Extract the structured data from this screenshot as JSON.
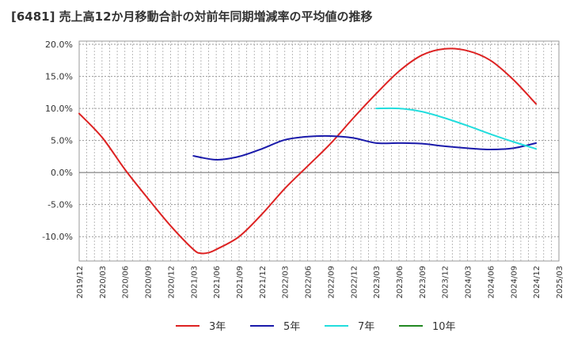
{
  "title": "[6481]  売上高12か月移動合計の対前年同期増減率の平均値の推移",
  "chart_data": {
    "type": "line",
    "title": "[6481]  売上高12か月移動合計の対前年同期増減率の平均値の推移",
    "xlabel": "",
    "ylabel": "",
    "ylim": [
      -13.8,
      20.5
    ],
    "y_ticks": [
      20,
      15,
      10,
      5,
      0,
      -5,
      -10
    ],
    "y_tick_labels": [
      "20.0%",
      "15.0%",
      "10.0%",
      "5.0%",
      "0.0%",
      "-5.0%",
      "-10.0%"
    ],
    "x_tick_labels": [
      "2019/12",
      "2020/03",
      "2020/06",
      "2020/09",
      "2020/12",
      "2021/03",
      "2021/06",
      "2021/09",
      "2021/12",
      "2022/03",
      "2022/06",
      "2022/09",
      "2022/12",
      "2023/03",
      "2023/06",
      "2023/09",
      "2023/12",
      "2024/03",
      "2024/06",
      "2024/09",
      "2024/12",
      "2025/03"
    ],
    "grid": true,
    "legend_position": "bottom",
    "series": [
      {
        "name": "3年",
        "color": "#dd2222",
        "points": [
          [
            "2019/12",
            9.2
          ],
          [
            "2020/03",
            5.5
          ],
          [
            "2020/06",
            0.5
          ],
          [
            "2020/09",
            -4.0
          ],
          [
            "2020/12",
            -8.3
          ],
          [
            "2021/03",
            -12.0
          ],
          [
            "2021/04",
            -12.6
          ],
          [
            "2021/05",
            -12.5
          ],
          [
            "2021/06",
            -12.0
          ],
          [
            "2021/09",
            -10.0
          ],
          [
            "2021/12",
            -6.5
          ],
          [
            "2022/03",
            -2.5
          ],
          [
            "2022/06",
            1.0
          ],
          [
            "2022/09",
            4.5
          ],
          [
            "2022/12",
            8.5
          ],
          [
            "2023/03",
            12.3
          ],
          [
            "2023/06",
            15.8
          ],
          [
            "2023/09",
            18.3
          ],
          [
            "2023/12",
            19.3
          ],
          [
            "2024/03",
            19.0
          ],
          [
            "2024/06",
            17.5
          ],
          [
            "2024/09",
            14.5
          ],
          [
            "2024/12",
            10.7
          ]
        ]
      },
      {
        "name": "5年",
        "color": "#1a1aaa",
        "points": [
          [
            "2021/03",
            2.6
          ],
          [
            "2021/06",
            2.0
          ],
          [
            "2021/09",
            2.5
          ],
          [
            "2021/12",
            3.7
          ],
          [
            "2022/03",
            5.1
          ],
          [
            "2022/06",
            5.6
          ],
          [
            "2022/09",
            5.7
          ],
          [
            "2022/12",
            5.4
          ],
          [
            "2023/03",
            4.6
          ],
          [
            "2023/06",
            4.6
          ],
          [
            "2023/09",
            4.5
          ],
          [
            "2023/12",
            4.1
          ],
          [
            "2024/03",
            3.8
          ],
          [
            "2024/06",
            3.6
          ],
          [
            "2024/09",
            3.8
          ],
          [
            "2024/12",
            4.6
          ]
        ]
      },
      {
        "name": "7年",
        "color": "#22dddd",
        "points": [
          [
            "2023/03",
            10.0
          ],
          [
            "2023/06",
            10.0
          ],
          [
            "2023/09",
            9.5
          ],
          [
            "2023/12",
            8.5
          ],
          [
            "2024/03",
            7.3
          ],
          [
            "2024/06",
            6.0
          ],
          [
            "2024/09",
            4.8
          ],
          [
            "2024/12",
            3.7
          ]
        ]
      },
      {
        "name": "10年",
        "color": "#228822",
        "points": []
      }
    ]
  }
}
